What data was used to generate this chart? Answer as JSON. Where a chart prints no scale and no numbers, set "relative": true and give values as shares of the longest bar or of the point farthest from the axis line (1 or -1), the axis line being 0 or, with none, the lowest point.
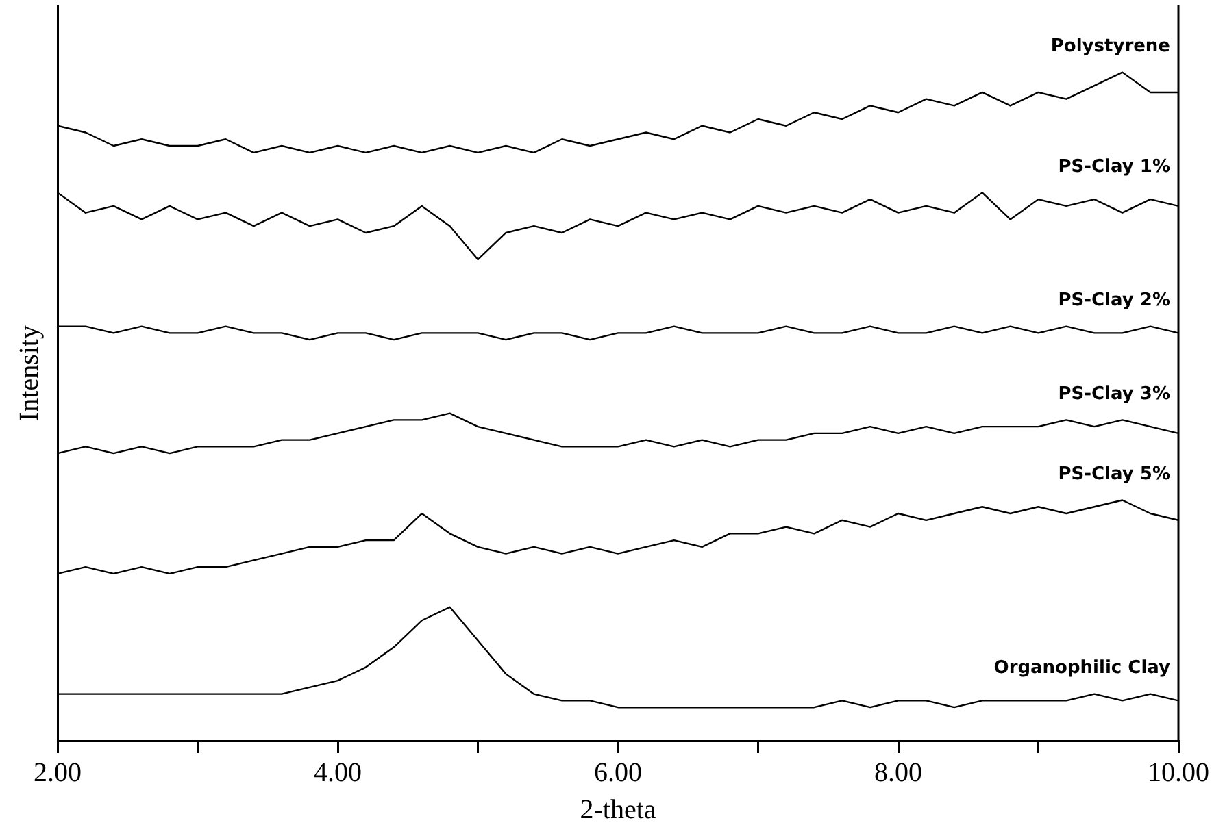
{
  "chart_data": {
    "type": "line",
    "relative": true,
    "xlabel": "2-theta",
    "ylabel": "Intensity",
    "marker": "none",
    "line_style": "solid",
    "grid": false,
    "legend": false,
    "x": [
      2.0,
      2.2,
      2.4,
      2.6,
      2.8,
      3.0,
      3.2,
      3.4,
      3.6,
      3.8,
      4.0,
      4.2,
      4.4,
      4.6,
      4.8,
      5.0,
      5.2,
      5.4,
      5.6,
      5.8,
      6.0,
      6.2,
      6.4,
      6.6,
      6.8,
      7.0,
      7.2,
      7.4,
      7.6,
      7.8,
      8.0,
      8.2,
      8.4,
      8.6,
      8.8,
      9.0,
      9.2,
      9.4,
      9.6,
      9.8,
      10.0
    ],
    "xlim": [
      2,
      10
    ],
    "xticks": [
      {
        "value": 2,
        "label": "2.00"
      },
      {
        "value": 3,
        "label": null
      },
      {
        "value": 4,
        "label": "4.00"
      },
      {
        "value": 5,
        "label": null
      },
      {
        "value": 6,
        "label": "6.00"
      },
      {
        "value": 7,
        "label": null
      },
      {
        "value": 8,
        "label": "8.00"
      },
      {
        "value": 9,
        "label": null
      },
      {
        "value": 10,
        "label": "10.00"
      }
    ],
    "series": [
      {
        "name": "Polystyrene",
        "color": "#000000",
        "values": [
          0.92,
          0.91,
          0.89,
          0.9,
          0.89,
          0.89,
          0.9,
          0.88,
          0.89,
          0.88,
          0.89,
          0.88,
          0.89,
          0.88,
          0.89,
          0.88,
          0.89,
          0.88,
          0.9,
          0.89,
          0.9,
          0.91,
          0.9,
          0.92,
          0.91,
          0.93,
          0.92,
          0.94,
          0.93,
          0.95,
          0.94,
          0.96,
          0.95,
          0.97,
          0.95,
          0.97,
          0.96,
          0.98,
          1.0,
          0.97,
          0.97
        ]
      },
      {
        "name": "PS-Clay 1%",
        "color": "#000000",
        "values": [
          0.82,
          0.79,
          0.8,
          0.78,
          0.8,
          0.78,
          0.79,
          0.77,
          0.79,
          0.77,
          0.78,
          0.76,
          0.77,
          0.8,
          0.77,
          0.72,
          0.76,
          0.77,
          0.76,
          0.78,
          0.77,
          0.79,
          0.78,
          0.79,
          0.78,
          0.8,
          0.79,
          0.8,
          0.79,
          0.81,
          0.79,
          0.8,
          0.79,
          0.82,
          0.78,
          0.81,
          0.8,
          0.81,
          0.79,
          0.81,
          0.8
        ]
      },
      {
        "name": "PS-Clay 2%",
        "color": "#000000",
        "values": [
          0.62,
          0.62,
          0.61,
          0.62,
          0.61,
          0.61,
          0.62,
          0.61,
          0.61,
          0.6,
          0.61,
          0.61,
          0.6,
          0.61,
          0.61,
          0.61,
          0.6,
          0.61,
          0.61,
          0.6,
          0.61,
          0.61,
          0.62,
          0.61,
          0.61,
          0.61,
          0.62,
          0.61,
          0.61,
          0.62,
          0.61,
          0.61,
          0.62,
          0.61,
          0.62,
          0.61,
          0.62,
          0.61,
          0.61,
          0.62,
          0.61
        ]
      },
      {
        "name": "PS-Clay 3%",
        "color": "#000000",
        "values": [
          0.43,
          0.44,
          0.43,
          0.44,
          0.43,
          0.44,
          0.44,
          0.44,
          0.45,
          0.45,
          0.46,
          0.47,
          0.48,
          0.48,
          0.49,
          0.47,
          0.46,
          0.45,
          0.44,
          0.44,
          0.44,
          0.45,
          0.44,
          0.45,
          0.44,
          0.45,
          0.45,
          0.46,
          0.46,
          0.47,
          0.46,
          0.47,
          0.46,
          0.47,
          0.47,
          0.47,
          0.48,
          0.47,
          0.48,
          0.47,
          0.46
        ]
      },
      {
        "name": "PS-Clay 5%",
        "color": "#000000",
        "values": [
          0.25,
          0.26,
          0.25,
          0.26,
          0.25,
          0.26,
          0.26,
          0.27,
          0.28,
          0.29,
          0.29,
          0.3,
          0.3,
          0.34,
          0.31,
          0.29,
          0.28,
          0.29,
          0.28,
          0.29,
          0.28,
          0.29,
          0.3,
          0.29,
          0.31,
          0.31,
          0.32,
          0.31,
          0.33,
          0.32,
          0.34,
          0.33,
          0.34,
          0.35,
          0.34,
          0.35,
          0.34,
          0.35,
          0.36,
          0.34,
          0.33
        ]
      },
      {
        "name": "Organophilic Clay",
        "color": "#000000",
        "values": [
          0.07,
          0.07,
          0.07,
          0.07,
          0.07,
          0.07,
          0.07,
          0.07,
          0.07,
          0.08,
          0.09,
          0.11,
          0.14,
          0.18,
          0.2,
          0.15,
          0.1,
          0.07,
          0.06,
          0.06,
          0.05,
          0.05,
          0.05,
          0.05,
          0.05,
          0.05,
          0.05,
          0.05,
          0.06,
          0.05,
          0.06,
          0.06,
          0.05,
          0.06,
          0.06,
          0.06,
          0.06,
          0.07,
          0.06,
          0.07,
          0.06
        ]
      }
    ]
  }
}
